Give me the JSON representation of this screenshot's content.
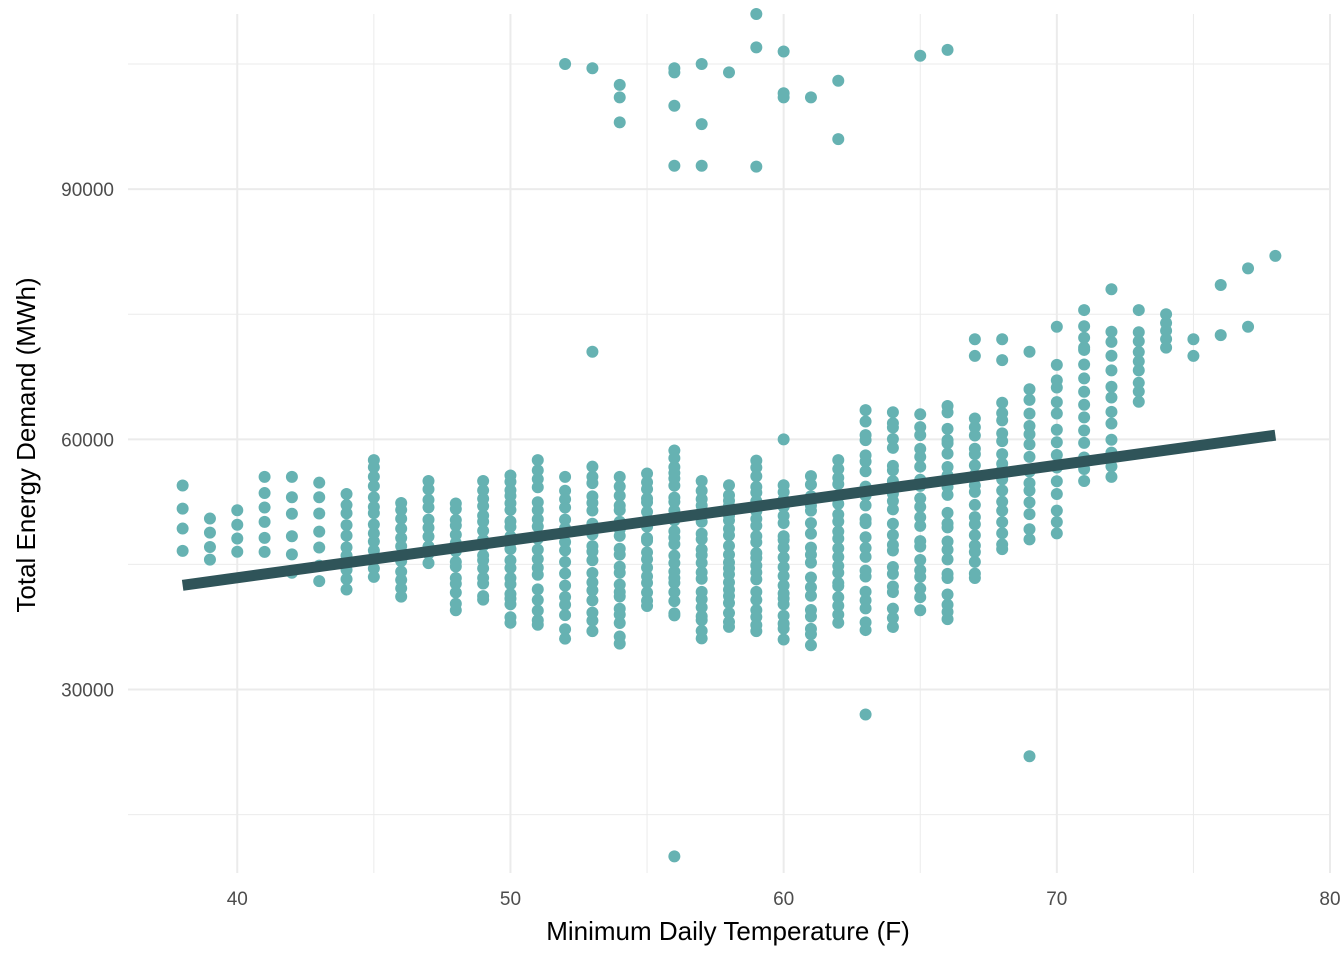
{
  "chart_data": {
    "type": "scatter",
    "title": "",
    "xlabel": "Minimum Daily Temperature (F)",
    "ylabel": "Total Energy Demand (MWh)",
    "xlim": [
      36,
      80
    ],
    "ylim": [
      8000,
      111000
    ],
    "x_ticks": [
      40,
      50,
      60,
      70,
      80
    ],
    "y_ticks": [
      30000,
      60000,
      90000
    ],
    "grid": true,
    "legend": "none",
    "colors": {
      "points": "#66b2b2",
      "trend": "#2f5459",
      "grid": "#ebebeb"
    },
    "trend_line": {
      "x": [
        38,
        78
      ],
      "y": [
        42500,
        60500
      ]
    },
    "columns": [
      {
        "x": 38,
        "min": 46500,
        "max": 54500,
        "n": 4
      },
      {
        "x": 39,
        "min": 45500,
        "max": 50500,
        "n": 4
      },
      {
        "x": 40,
        "min": 46500,
        "max": 51500,
        "n": 4
      },
      {
        "x": 41,
        "min": 46500,
        "max": 55500,
        "n": 6
      },
      {
        "x": 42,
        "min": 44000,
        "max": 55500,
        "n": 6
      },
      {
        "x": 43,
        "min": 43000,
        "max": 55000,
        "n": 7
      },
      {
        "x": 44,
        "min": 42000,
        "max": 53500,
        "n": 10
      },
      {
        "x": 45,
        "min": 43500,
        "max": 57500,
        "n": 14
      },
      {
        "x": 46,
        "min": 41000,
        "max": 52500,
        "n": 12
      },
      {
        "x": 47,
        "min": 45000,
        "max": 55000,
        "n": 10
      },
      {
        "x": 48,
        "min": 39500,
        "max": 52500,
        "n": 14
      },
      {
        "x": 49,
        "min": 40500,
        "max": 55000,
        "n": 16
      },
      {
        "x": 50,
        "min": 38000,
        "max": 56000,
        "n": 20
      },
      {
        "x": 51,
        "min": 37500,
        "max": 57500,
        "n": 18
      },
      {
        "x": 52,
        "min": 36000,
        "max": 55500,
        "n": 16
      },
      {
        "x": 53,
        "min": 37000,
        "max": 57000,
        "n": 18
      },
      {
        "x": 54,
        "min": 35500,
        "max": 55500,
        "n": 20
      },
      {
        "x": 55,
        "min": 40000,
        "max": 56000,
        "n": 18
      },
      {
        "x": 56,
        "min": 38500,
        "max": 59000,
        "n": 22
      },
      {
        "x": 57,
        "min": 36000,
        "max": 55000,
        "n": 20
      },
      {
        "x": 58,
        "min": 37500,
        "max": 54500,
        "n": 20
      },
      {
        "x": 59,
        "min": 37000,
        "max": 57500,
        "n": 22
      },
      {
        "x": 60,
        "min": 36000,
        "max": 54500,
        "n": 20
      },
      {
        "x": 61,
        "min": 35000,
        "max": 56000,
        "n": 18
      },
      {
        "x": 62,
        "min": 38000,
        "max": 57500,
        "n": 20
      },
      {
        "x": 63,
        "min": 37000,
        "max": 63500,
        "n": 22
      },
      {
        "x": 64,
        "min": 37500,
        "max": 63500,
        "n": 22
      },
      {
        "x": 65,
        "min": 39500,
        "max": 63000,
        "n": 20
      },
      {
        "x": 66,
        "min": 38000,
        "max": 64000,
        "n": 22
      },
      {
        "x": 67,
        "min": 43000,
        "max": 62500,
        "n": 18
      },
      {
        "x": 68,
        "min": 46500,
        "max": 64500,
        "n": 16
      },
      {
        "x": 69,
        "min": 48000,
        "max": 66000,
        "n": 14
      },
      {
        "x": 70,
        "min": 48500,
        "max": 69000,
        "n": 14
      },
      {
        "x": 71,
        "min": 55000,
        "max": 75500,
        "n": 14
      },
      {
        "x": 72,
        "min": 55500,
        "max": 73000,
        "n": 12
      },
      {
        "x": 73,
        "min": 64500,
        "max": 73000,
        "n": 8
      },
      {
        "x": 74,
        "min": 71000,
        "max": 75000,
        "n": 5
      }
    ],
    "extra_points": [
      {
        "x": 52,
        "y": 105000
      },
      {
        "x": 53,
        "y": 104500
      },
      {
        "x": 54,
        "y": 102500
      },
      {
        "x": 54,
        "y": 101000
      },
      {
        "x": 54,
        "y": 98000
      },
      {
        "x": 56,
        "y": 104500
      },
      {
        "x": 56,
        "y": 104000
      },
      {
        "x": 56,
        "y": 100000
      },
      {
        "x": 56,
        "y": 92800
      },
      {
        "x": 57,
        "y": 105000
      },
      {
        "x": 57,
        "y": 97800
      },
      {
        "x": 57,
        "y": 92800
      },
      {
        "x": 58,
        "y": 104000
      },
      {
        "x": 59,
        "y": 111000
      },
      {
        "x": 59,
        "y": 107000
      },
      {
        "x": 59,
        "y": 92700
      },
      {
        "x": 60,
        "y": 106500
      },
      {
        "x": 60,
        "y": 101500
      },
      {
        "x": 60,
        "y": 101000
      },
      {
        "x": 61,
        "y": 101000
      },
      {
        "x": 62,
        "y": 103000
      },
      {
        "x": 62,
        "y": 96000
      },
      {
        "x": 65,
        "y": 106000
      },
      {
        "x": 66,
        "y": 106700
      },
      {
        "x": 53,
        "y": 70500
      },
      {
        "x": 63,
        "y": 27000
      },
      {
        "x": 69,
        "y": 22000
      },
      {
        "x": 56,
        "y": 10000
      },
      {
        "x": 60,
        "y": 60000
      },
      {
        "x": 67,
        "y": 72000
      },
      {
        "x": 67,
        "y": 70000
      },
      {
        "x": 68,
        "y": 72000
      },
      {
        "x": 68,
        "y": 69500
      },
      {
        "x": 69,
        "y": 70500
      },
      {
        "x": 70,
        "y": 73500
      },
      {
        "x": 71,
        "y": 71000
      },
      {
        "x": 72,
        "y": 78000
      },
      {
        "x": 73,
        "y": 75500
      },
      {
        "x": 75,
        "y": 72000
      },
      {
        "x": 75,
        "y": 70000
      },
      {
        "x": 76,
        "y": 78500
      },
      {
        "x": 76,
        "y": 72500
      },
      {
        "x": 77,
        "y": 80500
      },
      {
        "x": 77,
        "y": 73500
      },
      {
        "x": 78,
        "y": 82000
      }
    ]
  }
}
